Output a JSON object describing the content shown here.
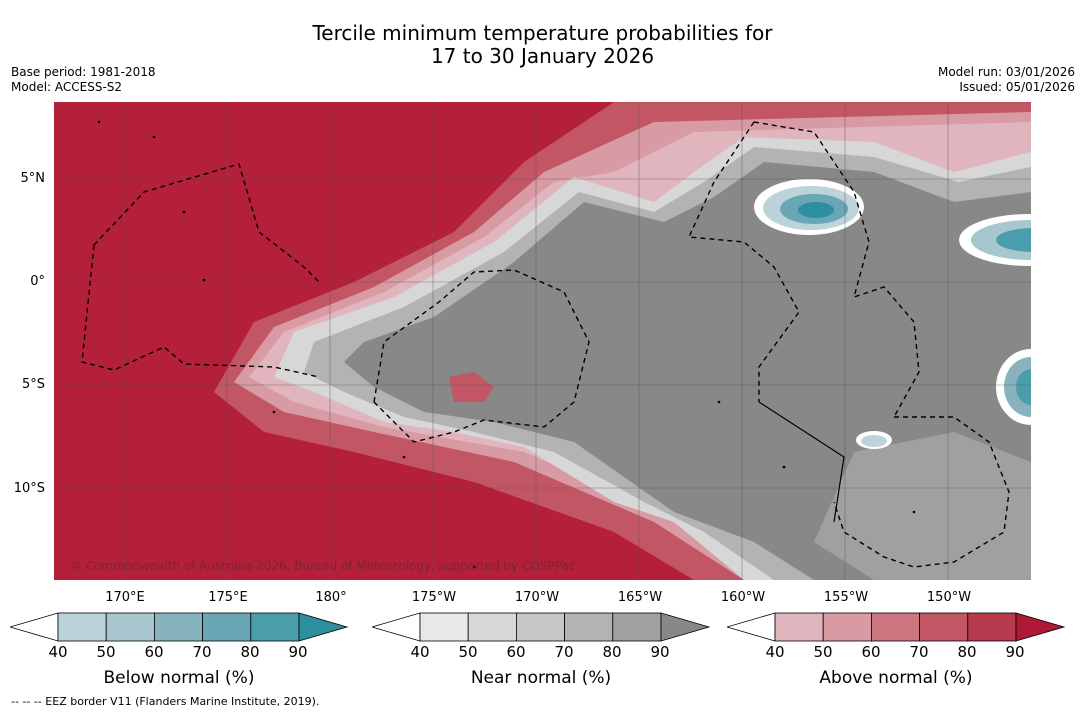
{
  "title": {
    "line1": "Tercile minimum temperature probabilities for",
    "line2": "17 to 30 January 2026"
  },
  "meta_left": {
    "base_period": "Base period: 1981-2018",
    "model": "Model: ACCESS-S2"
  },
  "meta_right": {
    "model_run": "Model run: 03/01/2026",
    "issued": "Issued: 05/01/2026"
  },
  "copyright": "© Commonwealth of Australia 2026, Bureau of Meteorology, supported by COSPPac",
  "lat_labels": [
    "5°N",
    "0°",
    "5°S",
    "10°S"
  ],
  "lon_labels": [
    "170°E",
    "175°E",
    "180°",
    "175°W",
    "170°W",
    "165°W",
    "160°W",
    "155°W",
    "150°W"
  ],
  "colorbars": [
    {
      "title": "Below normal (%)",
      "ticks": [
        "40",
        "50",
        "60",
        "70",
        "80",
        "90"
      ],
      "colors": [
        "#bcd3da",
        "#a7c6cd",
        "#88b3be",
        "#69a7b4",
        "#4a9dab",
        "#2b8fa0"
      ]
    },
    {
      "title": "Near normal (%)",
      "ticks": [
        "40",
        "50",
        "60",
        "70",
        "80",
        "90"
      ],
      "colors": [
        "#e8e8e8",
        "#d7d7d7",
        "#c6c6c6",
        "#b3b3b3",
        "#a0a0a0",
        "#888888"
      ]
    },
    {
      "title": "Above normal (%)",
      "ticks": [
        "40",
        "50",
        "60",
        "70",
        "80",
        "90"
      ],
      "colors": [
        "#e1b5bd",
        "#d89aa3",
        "#cc7682",
        "#c25664",
        "#b83a4e",
        "#ae1a36"
      ]
    }
  ],
  "footer": "-- -- -- EEZ border V11 (Flanders Marine Institute, 2019).",
  "colors": {
    "above_max": "#b41f3a",
    "near_max": "#858585",
    "below_max": "#2b8fa0"
  }
}
